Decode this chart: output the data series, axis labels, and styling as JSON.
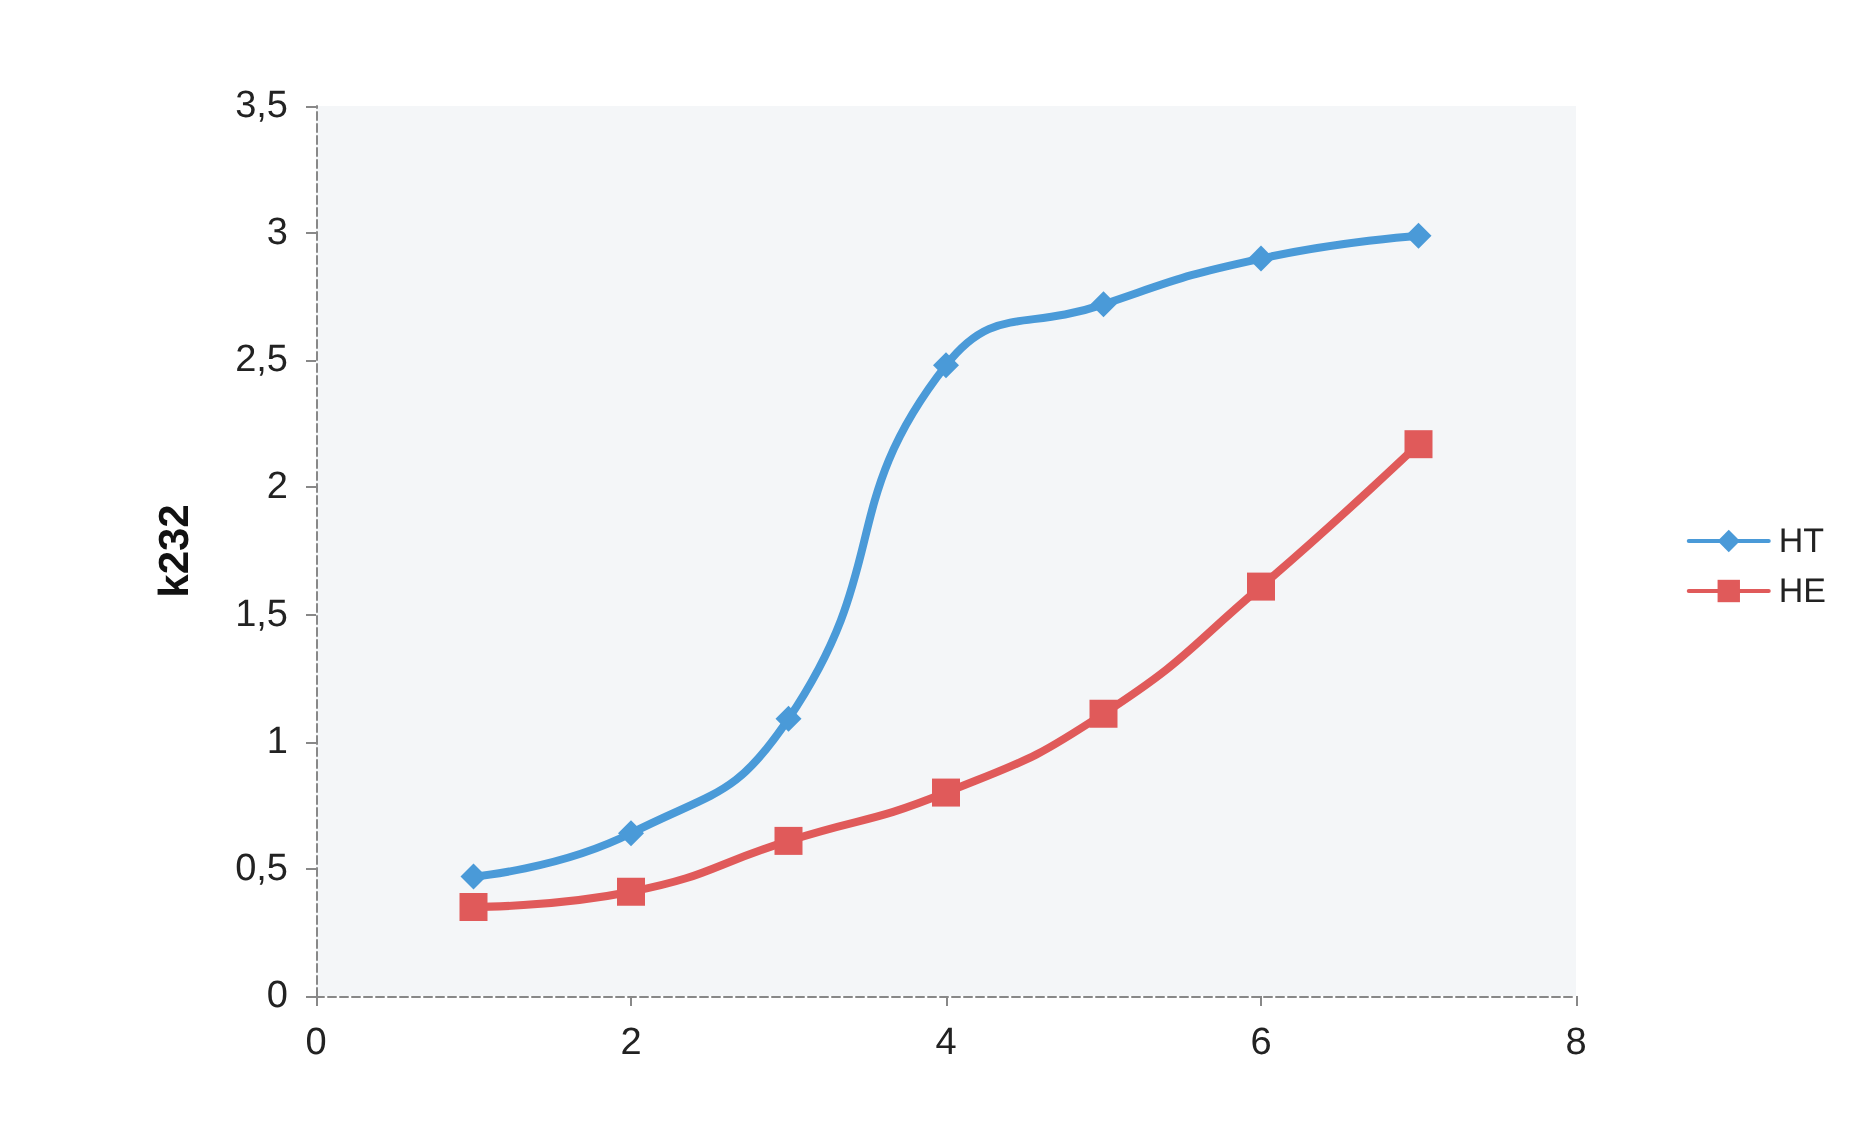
{
  "chart_data": {
    "type": "line",
    "ylabel": "k232",
    "x": [
      1,
      2,
      3,
      4,
      5,
      6,
      7
    ],
    "xlim": [
      0,
      8
    ],
    "xticks": [
      0,
      2,
      4,
      6,
      8
    ],
    "ylim": [
      0,
      3.5
    ],
    "yticks": [
      0,
      {
        "value": 0.5,
        "label": "0,5"
      },
      1,
      {
        "value": 1.5,
        "label": "1,5"
      },
      2,
      {
        "value": 2.5,
        "label": "2,5"
      },
      3,
      {
        "value": 3.5,
        "label": "3,5"
      }
    ],
    "grid": false,
    "legend": "right",
    "line_style": "solid",
    "series": [
      {
        "name": "HT",
        "color": "#4a9ad8",
        "marker": "diamond",
        "values": [
          0.47,
          0.64,
          1.09,
          2.48,
          2.72,
          2.9,
          2.99
        ]
      },
      {
        "name": "HE",
        "color": "#e05a5a",
        "marker": "square",
        "values": [
          0.35,
          0.41,
          0.61,
          0.8,
          1.11,
          1.61,
          2.17
        ]
      }
    ]
  }
}
